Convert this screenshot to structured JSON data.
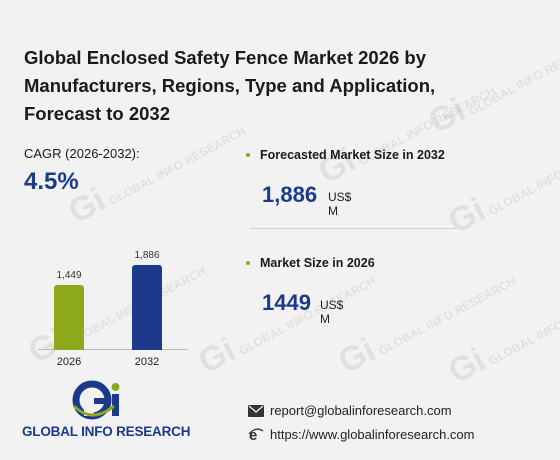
{
  "title": "Global Enclosed Safety Fence Market 2026 by Manufacturers, Regions, Type and Application, Forecast to 2032",
  "cagr": {
    "label": "CAGR (2026-2032):",
    "value": "4.5%"
  },
  "chart_data": {
    "type": "bar",
    "categories": [
      "2026",
      "2032"
    ],
    "values": [
      1449,
      1886
    ],
    "value_labels": [
      "1,449",
      "1,886"
    ],
    "colors": [
      "#8ea81e",
      "#1b3a8c"
    ],
    "ylim": [
      0,
      2000
    ]
  },
  "stats": [
    {
      "label": "Forecasted Market Size in 2032",
      "value": "1,886",
      "unit": "US$ M"
    },
    {
      "label": "Market Size in 2026",
      "value": "1449",
      "unit": "US$ M"
    }
  ],
  "logo": {
    "text": "GLOBAL INFO RESEARCH",
    "mark": "Gi"
  },
  "contact": {
    "email": "report@globalinforesearch.com",
    "website": "https://www.globalinforesearch.com"
  },
  "watermark": "GLOBAL INFO RESEARCH",
  "colors": {
    "accent_green": "#8ea81e",
    "accent_blue": "#1b3a8c",
    "background": "#f2f2f2"
  }
}
